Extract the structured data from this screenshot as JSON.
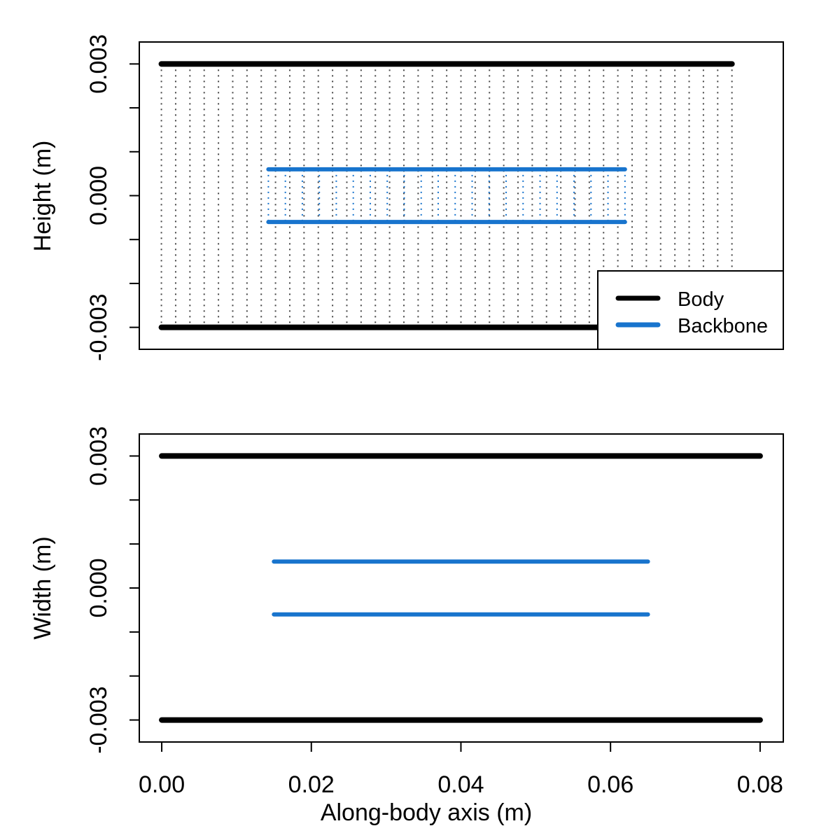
{
  "colors": {
    "body": "#000000",
    "backbone": "#1874CD",
    "body_links": "#444444"
  },
  "chart_data": [
    {
      "type": "line",
      "panel": "top",
      "xlabel": "",
      "ylabel": "Height (m)",
      "xlim": [
        -0.0031,
        0.0872
      ],
      "ylim": [
        -0.0035,
        0.0035
      ],
      "yticks": [
        -0.003,
        -0.002,
        -0.001,
        0,
        0.001,
        0.002,
        0.003
      ],
      "ytick_labels": [
        "-0.003",
        "",
        "",
        "0.000",
        "",
        "",
        "0.003"
      ],
      "grid": false,
      "legend": {
        "placement": "bottom-right",
        "entries": [
          "Body",
          "Backbone"
        ]
      },
      "series": [
        {
          "name": "Body",
          "color": "#000000",
          "x": [
            0,
            0.08
          ],
          "upper": 0.003,
          "lower": -0.003,
          "connectors": 41
        },
        {
          "name": "Backbone",
          "color": "#1874CD",
          "x": [
            0.015,
            0.065
          ],
          "upper": 0.0006,
          "lower": -0.0006,
          "connectors": 22
        }
      ]
    },
    {
      "type": "line",
      "panel": "bottom",
      "xlabel": "Along-body axis (m)",
      "ylabel": "Width (m)",
      "xlim": [
        -0.003,
        0.0831
      ],
      "ylim": [
        -0.0035,
        0.0035
      ],
      "xticks": [
        0,
        0.02,
        0.04,
        0.06,
        0.08
      ],
      "xtick_labels": [
        "0.00",
        "0.02",
        "0.04",
        "0.06",
        "0.08"
      ],
      "yticks": [
        -0.003,
        -0.002,
        -0.001,
        0,
        0.001,
        0.002,
        0.003
      ],
      "ytick_labels": [
        "-0.003",
        "",
        "",
        "0.000",
        "",
        "",
        "0.003"
      ],
      "grid": false,
      "series": [
        {
          "name": "Body",
          "color": "#000000",
          "x": [
            0,
            0.08
          ],
          "upper": 0.003,
          "lower": -0.003
        },
        {
          "name": "Backbone",
          "color": "#1874CD",
          "x": [
            0.015,
            0.065
          ],
          "upper": 0.0006,
          "lower": -0.0006
        }
      ]
    }
  ]
}
